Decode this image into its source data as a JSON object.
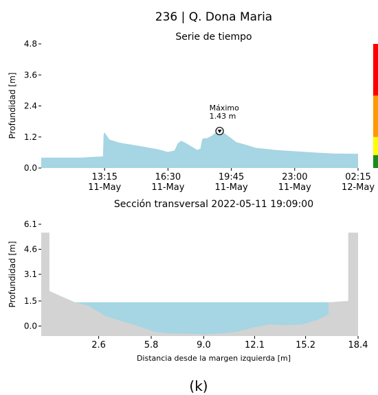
{
  "title": "236 | Q. Dona Maria",
  "caption": "(k)",
  "chart_data": [
    {
      "type": "area",
      "title": "Serie de tiempo",
      "ylabel": "Profundidad [m]",
      "xlabel": "",
      "x_range": [
        "2022-05-11 10:00",
        "2022-05-12 02:15"
      ],
      "ylim": [
        0,
        4.8
      ],
      "yticks": [
        "0.0",
        "1.2",
        "2.4",
        "3.6",
        "4.8"
      ],
      "xticks": [
        {
          "time": "2022-05-11 13:15",
          "l1": "13:15",
          "l2": "11-May"
        },
        {
          "time": "2022-05-11 16:30",
          "l1": "16:30",
          "l2": "11-May"
        },
        {
          "time": "2022-05-11 19:45",
          "l1": "19:45",
          "l2": "11-May"
        },
        {
          "time": "2022-05-11 23:00",
          "l1": "23:00",
          "l2": "11-May"
        },
        {
          "time": "2022-05-12 02:15",
          "l1": "02:15",
          "l2": "12-May"
        }
      ],
      "series": [
        {
          "color": "#a6d5e3",
          "x": [
            "2022-05-11 10:00",
            "2022-05-11 12:00",
            "2022-05-11 13:10",
            "2022-05-11 13:12",
            "2022-05-11 13:15",
            "2022-05-11 13:20",
            "2022-05-11 13:30",
            "2022-05-11 14:00",
            "2022-05-11 15:00",
            "2022-05-11 16:00",
            "2022-05-11 16:30",
            "2022-05-11 16:50",
            "2022-05-11 17:00",
            "2022-05-11 17:10",
            "2022-05-11 17:20",
            "2022-05-11 17:40",
            "2022-05-11 18:00",
            "2022-05-11 18:10",
            "2022-05-11 18:15",
            "2022-05-11 18:20",
            "2022-05-11 18:30",
            "2022-05-11 18:45",
            "2022-05-11 19:00",
            "2022-05-11 19:09",
            "2022-05-11 19:20",
            "2022-05-11 19:45",
            "2022-05-11 20:00",
            "2022-05-11 20:30",
            "2022-05-11 21:00",
            "2022-05-11 22:00",
            "2022-05-11 23:00",
            "2022-05-12 00:00",
            "2022-05-12 01:00",
            "2022-05-12 02:15"
          ],
          "y": [
            0.4,
            0.4,
            0.45,
            1.3,
            1.38,
            1.28,
            1.1,
            0.98,
            0.86,
            0.72,
            0.62,
            0.68,
            0.95,
            1.05,
            1.0,
            0.85,
            0.7,
            0.75,
            1.1,
            1.15,
            1.15,
            1.25,
            1.4,
            1.43,
            1.38,
            1.15,
            1.0,
            0.9,
            0.78,
            0.7,
            0.65,
            0.6,
            0.56,
            0.55
          ]
        }
      ],
      "annotation": {
        "label": "Máximo",
        "value": "1.43 m",
        "time": "2022-05-11 19:09",
        "y": 1.43
      },
      "alert_bands": [
        {
          "from": 0.0,
          "to": 0.5,
          "color": "#1a8a1a"
        },
        {
          "from": 0.5,
          "to": 1.2,
          "color": "#ffff00"
        },
        {
          "from": 1.2,
          "to": 2.8,
          "color": "#ff9900"
        },
        {
          "from": 2.8,
          "to": 4.8,
          "color": "#ff0000"
        }
      ]
    },
    {
      "type": "area",
      "title": "Sección transversal 2022-05-11 19:09:00",
      "xlabel": "Distancia desde la margen izquierda [m]",
      "ylabel": "Profundidad [m]",
      "xlim": [
        -0.9,
        18.4
      ],
      "ylim": [
        -0.6,
        6.1
      ],
      "xticks": [
        "2.6",
        "5.8",
        "9.0",
        "12.1",
        "15.2",
        "18.4"
      ],
      "yticks": [
        "0.0",
        "1.5",
        "3.1",
        "4.6",
        "6.1"
      ],
      "water_level": 1.43,
      "water_color": "#a6d5e3",
      "terrain_color": "#d3d3d3",
      "terrain": {
        "x": [
          -0.9,
          -0.9,
          -0.4,
          -0.4,
          0.5,
          1.2,
          1.5,
          2.0,
          3.0,
          4.0,
          5.0,
          6.0,
          7.0,
          8.0,
          9.0,
          10.0,
          11.0,
          12.0,
          13.0,
          14.0,
          15.0,
          16.0,
          16.6,
          16.6,
          17.0,
          17.8,
          17.8,
          18.4,
          18.4
        ],
        "y": [
          5.6,
          5.6,
          5.6,
          2.1,
          1.7,
          1.4,
          1.35,
          1.2,
          0.6,
          0.3,
          0.0,
          -0.35,
          -0.45,
          -0.45,
          -0.5,
          -0.45,
          -0.35,
          -0.1,
          0.1,
          0.05,
          0.1,
          0.4,
          0.7,
          1.4,
          1.45,
          1.5,
          5.6,
          5.6,
          5.6
        ]
      }
    }
  ]
}
